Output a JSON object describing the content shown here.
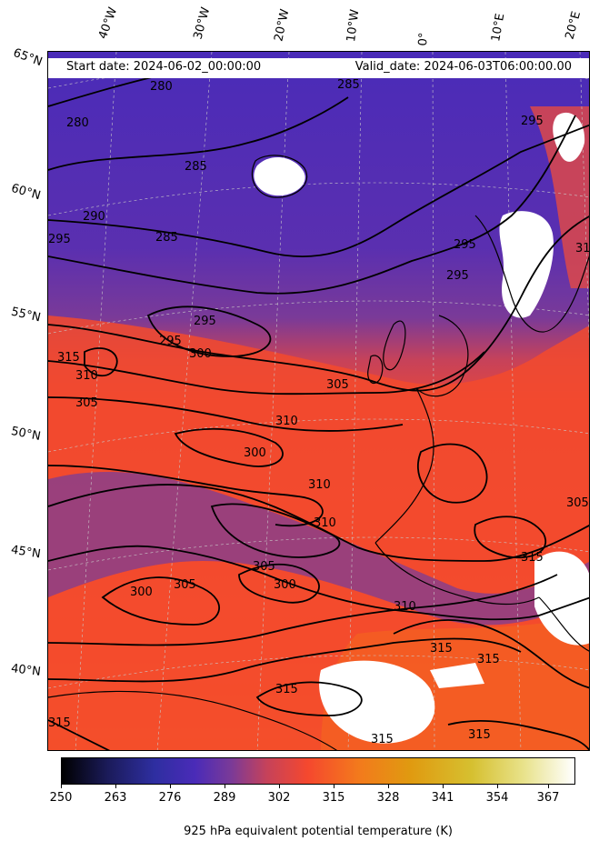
{
  "header": {
    "start_date": "Start date: 2024-06-02_00:00:00",
    "valid_date": "Valid_date: 2024-06-03T06:00:00.00"
  },
  "longitude_labels": [
    "40°W",
    "30°W",
    "20°W",
    "10°W",
    "0°",
    "10°E",
    "20°E"
  ],
  "latitude_labels": [
    "65°N",
    "60°N",
    "55°N",
    "50°N",
    "45°N",
    "40°N"
  ],
  "colorbar": {
    "ticks": [
      "250",
      "263",
      "276",
      "289",
      "302",
      "315",
      "328",
      "341",
      "354",
      "367"
    ],
    "label": "925 hPa equivalent potential temperature (K)",
    "colormap": "CMRmap-like",
    "range": [
      250,
      372
    ]
  },
  "field": {
    "variable": "equivalent potential temperature",
    "level_hPa": 925,
    "units": "K",
    "north_value_range": [
      280,
      295
    ],
    "south_value_range": [
      305,
      318
    ],
    "missing_color": "#ffffff"
  },
  "contours": {
    "interval": 5,
    "labels": [
      "280",
      "280",
      "285",
      "285",
      "285",
      "290",
      "295",
      "295",
      "295",
      "295",
      "295",
      "295",
      "300",
      "300",
      "300",
      "300",
      "305",
      "305",
      "305",
      "305",
      "305",
      "310",
      "310",
      "310",
      "310",
      "310",
      "315",
      "315",
      "315",
      "315",
      "315",
      "315",
      "315",
      "315",
      "315"
    ]
  },
  "colors": {
    "cold": "#4a2bb8",
    "mid": "#8a3e8a",
    "warm": "#f5482e",
    "hot": "#f37a1c",
    "contour": "#000000",
    "gridline": "#c9c9c9"
  }
}
